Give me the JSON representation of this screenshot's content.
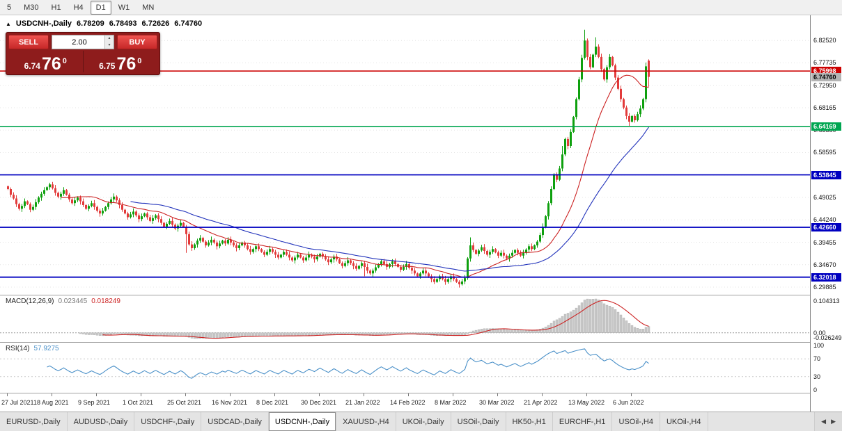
{
  "toolbar": {
    "timeframes": [
      "5",
      "M30",
      "H1",
      "H4",
      "D1",
      "W1",
      "MN"
    ],
    "active": "D1"
  },
  "chart_header": {
    "marker_icon": "▲",
    "symbol": "USDCNH-,Daily",
    "open": "6.78209",
    "high": "6.78493",
    "low": "6.72626",
    "close": "6.74760"
  },
  "trade_panel": {
    "sell_label": "SELL",
    "buy_label": "BUY",
    "volume": "2.00",
    "volume_up_icon": "▴",
    "volume_down_icon": "▾",
    "sell_price": {
      "small": "6.74",
      "big": "76",
      "sup": "0"
    },
    "buy_price": {
      "small": "6.75",
      "big": "76",
      "sup": "0"
    }
  },
  "price_axis_labels": [
    "6.82520",
    "6.77735",
    "6.72950",
    "6.68165",
    "6.63380",
    "6.58595",
    "6.53810",
    "6.49025",
    "6.44240",
    "6.39455",
    "6.34670",
    "6.29885"
  ],
  "levels": [
    {
      "price": 6.75998,
      "label": "6.75998",
      "color": "#cc0000",
      "line": true,
      "width": 1.6,
      "text_color": "#fff"
    },
    {
      "price": 6.7476,
      "label": "6.74760",
      "color": "#b4b4b4",
      "line": false,
      "text_color": "#000"
    },
    {
      "price": 6.64169,
      "label": "6.64169",
      "color": "#00a651",
      "line": true,
      "width": 1.6,
      "text_color": "#fff"
    },
    {
      "price": 6.53845,
      "label": "6.53845",
      "color": "#0000c0",
      "line": true,
      "width": 1.8,
      "text_color": "#fff"
    },
    {
      "price": 6.4266,
      "label": "6.42660",
      "color": "#0000c0",
      "line": true,
      "width": 1.8,
      "text_color": "#fff"
    },
    {
      "price": 6.32018,
      "label": "6.32018",
      "color": "#0000c0",
      "line": true,
      "width": 1.8,
      "text_color": "#fff"
    }
  ],
  "macd_panel": {
    "title": "MACD(12,26,9)",
    "value_main": "0.023445",
    "value_signal": "0.018249",
    "axis": [
      "0.104313",
      "0.00",
      "-0.026249"
    ]
  },
  "rsi_panel": {
    "title": "RSI(14)",
    "value": "57.9275",
    "axis": [
      "100",
      "70",
      "30",
      "0"
    ]
  },
  "chart_data": {
    "type": "candlestick",
    "symbol": "USDCNH",
    "timeframe": "Daily",
    "title": "USDCNH-,Daily",
    "x_labels": [
      "27 Jul 2021",
      "18 Aug 2021",
      "9 Sep 2021",
      "1 Oct 2021",
      "25 Oct 2021",
      "16 Nov 2021",
      "8 Dec 2021",
      "30 Dec 2021",
      "21 Jan 2022",
      "14 Feb 2022",
      "8 Mar 2022",
      "30 Mar 2022",
      "21 Apr 2022",
      "13 May 2022",
      "6 Jun 2022"
    ],
    "bars_per_label": 16,
    "ylim": [
      6.2826,
      6.8789
    ],
    "current_ohlc": {
      "open": 6.78209,
      "high": 6.78493,
      "low": 6.72626,
      "close": 6.7476
    },
    "closes": [
      6.508,
      6.496,
      6.488,
      6.476,
      6.466,
      6.472,
      6.482,
      6.476,
      6.464,
      6.47,
      6.48,
      6.49,
      6.498,
      6.506,
      6.512,
      6.518,
      6.51,
      6.5,
      6.492,
      6.498,
      6.506,
      6.496,
      6.486,
      6.478,
      6.484,
      6.49,
      6.482,
      6.474,
      6.466,
      6.472,
      6.478,
      6.47,
      6.462,
      6.456,
      6.462,
      6.47,
      6.478,
      6.486,
      6.492,
      6.484,
      6.474,
      6.464,
      6.456,
      6.448,
      6.454,
      6.46,
      6.452,
      6.444,
      6.45,
      6.456,
      6.448,
      6.44,
      6.446,
      6.452,
      6.444,
      6.436,
      6.428,
      6.434,
      6.44,
      6.432,
      6.424,
      6.43,
      6.436,
      6.428,
      6.412,
      6.39,
      6.382,
      6.39,
      6.398,
      6.404,
      6.396,
      6.388,
      6.394,
      6.4,
      6.394,
      6.386,
      6.392,
      6.398,
      6.392,
      6.4,
      6.394,
      6.388,
      6.382,
      6.388,
      6.394,
      6.388,
      6.38,
      6.374,
      6.38,
      6.386,
      6.38,
      6.374,
      6.368,
      6.374,
      6.38,
      6.374,
      6.368,
      6.362,
      6.368,
      6.374,
      6.368,
      6.362,
      6.356,
      6.362,
      6.368,
      6.362,
      6.356,
      6.362,
      6.368,
      6.364,
      6.358,
      6.364,
      6.37,
      6.364,
      6.358,
      6.352,
      6.358,
      6.364,
      6.358,
      6.35,
      6.344,
      6.35,
      6.356,
      6.35,
      6.344,
      6.338,
      6.344,
      6.35,
      6.342,
      6.334,
      6.328,
      6.334,
      6.341,
      6.348,
      6.354,
      6.348,
      6.342,
      6.348,
      6.354,
      6.348,
      6.342,
      6.336,
      6.342,
      6.348,
      6.34,
      6.334,
      6.328,
      6.322,
      6.328,
      6.334,
      6.328,
      6.322,
      6.316,
      6.31,
      6.316,
      6.322,
      6.316,
      6.31,
      6.316,
      6.322,
      6.316,
      6.31,
      6.305,
      6.311,
      6.318,
      6.36,
      6.388,
      6.378,
      6.37,
      6.377,
      6.384,
      6.376,
      6.368,
      6.374,
      6.38,
      6.373,
      6.366,
      6.372,
      6.366,
      6.36,
      6.366,
      6.372,
      6.378,
      6.372,
      6.366,
      6.372,
      6.379,
      6.386,
      6.38,
      6.388,
      6.396,
      6.41,
      6.428,
      6.45,
      6.478,
      6.508,
      6.54,
      6.528,
      6.552,
      6.582,
      6.615,
      6.6,
      6.63,
      6.662,
      6.7,
      6.742,
      6.788,
      6.825,
      6.79,
      6.768,
      6.795,
      6.812,
      6.79,
      6.764,
      6.742,
      6.768,
      6.79,
      6.772,
      6.746,
      6.722,
      6.7,
      6.682,
      6.664,
      6.652,
      6.664,
      6.655,
      6.668,
      6.68,
      6.7,
      6.77,
      6.7476
    ],
    "overrides": {
      "64": {
        "l": 6.372
      },
      "128": {
        "l": 6.322
      },
      "162": {
        "l": 6.298
      },
      "166": {
        "h": 6.405
      },
      "199": {
        "h": 6.6
      },
      "207": {
        "h": 6.848
      },
      "211": {
        "h": 6.832
      },
      "223": {
        "l": 6.643
      },
      "229": {
        "h": 6.778
      },
      "230": {
        "o": 6.78209,
        "h": 6.78493,
        "l": 6.72626,
        "c": 6.7476
      }
    }
  },
  "tabs": {
    "items": [
      "EURUSD-,Daily",
      "AUDUSD-,Daily",
      "USDCHF-,Daily",
      "USDCAD-,Daily",
      "USDCNH-,Daily",
      "XAUUSD-,H4",
      "UKOil-,Daily",
      "USOil-,Daily",
      "HK50-,H1",
      "EURCHF-,H1",
      "USOil-,H4",
      "UKOil-,H4"
    ],
    "active": "USDCNH-,Daily",
    "scroll_left_icon": "◀",
    "scroll_right_icon": "▶"
  },
  "colors": {
    "bull": "#0ea00e",
    "bear": "#e23b3b",
    "ma_fast": "#cc2222",
    "ma_slow": "#2233bb",
    "macd_hist": "#c8c8c8",
    "macd_signal": "#cc2222",
    "rsi_line": "#4a90c8",
    "level_red": "#cc0000",
    "level_green": "#00a651",
    "level_blue": "#0000c0"
  }
}
